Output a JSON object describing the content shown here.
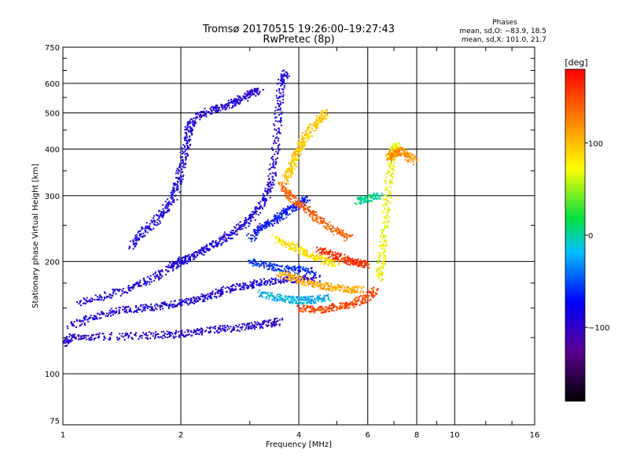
{
  "chart_data": {
    "type": "scatter",
    "title": "Tromsø 20170515 19:26:00–19:27:43",
    "subtitle": "RwPretec (8p)",
    "xlabel": "Frequency [MHz]",
    "ylabel": "Stationary phase Virtual Height [km]",
    "x_scale": "log",
    "y_scale": "log",
    "xlim": [
      1,
      16
    ],
    "ylim": [
      73,
      750
    ],
    "x_ticks": [
      1,
      2,
      4,
      6,
      8,
      10,
      16
    ],
    "x_tick_labels": [
      "1",
      "2",
      "4",
      "6",
      "8",
      "10",
      "16"
    ],
    "y_ticks": [
      75,
      100,
      200,
      300,
      400,
      500,
      600,
      750
    ],
    "y_tick_labels": [
      "75",
      "100",
      "200",
      "300",
      "400",
      "500",
      "600",
      "750"
    ],
    "grid": true,
    "phase_stats": {
      "title": "Phases",
      "line1": "mean, sd,O: −83.9, 18.5",
      "line2": "mean, sd,X: 101.0, 21.7"
    },
    "colorbar": {
      "label": "[deg]",
      "range": [
        -180,
        180
      ],
      "ticks": [
        100,
        0,
        -100
      ],
      "tick_labels": [
        "100",
        "0",
        "−100"
      ]
    },
    "traces": [
      {
        "phase": -95,
        "points": [
          [
            1.0,
            120
          ],
          [
            1.05,
            125
          ],
          [
            1.2,
            126
          ],
          [
            1.5,
            126
          ],
          [
            1.8,
            127
          ],
          [
            2.0,
            128
          ],
          [
            2.3,
            130
          ],
          [
            2.6,
            132
          ],
          [
            3.0,
            134
          ],
          [
            3.3,
            136
          ],
          [
            3.6,
            138
          ]
        ]
      },
      {
        "phase": -90,
        "points": [
          [
            1.05,
            135
          ],
          [
            1.2,
            142
          ],
          [
            1.4,
            148
          ],
          [
            1.6,
            150
          ],
          [
            1.8,
            152
          ],
          [
            2.0,
            155
          ],
          [
            2.2,
            158
          ],
          [
            2.4,
            162
          ],
          [
            2.6,
            168
          ],
          [
            2.9,
            172
          ],
          [
            3.2,
            176
          ],
          [
            3.6,
            178
          ],
          [
            4.0,
            180
          ],
          [
            4.5,
            180
          ]
        ]
      },
      {
        "phase": -88,
        "points": [
          [
            1.1,
            155
          ],
          [
            1.3,
            162
          ],
          [
            1.5,
            170
          ],
          [
            1.7,
            180
          ],
          [
            1.9,
            195
          ],
          [
            2.0,
            200
          ],
          [
            2.1,
            205
          ],
          [
            2.3,
            215
          ],
          [
            2.5,
            225
          ],
          [
            2.7,
            238
          ],
          [
            2.9,
            252
          ],
          [
            3.1,
            268
          ],
          [
            3.3,
            295
          ],
          [
            3.4,
            330
          ],
          [
            3.5,
            400
          ],
          [
            3.55,
            500
          ],
          [
            3.6,
            600
          ],
          [
            3.7,
            640
          ]
        ]
      },
      {
        "phase": -85,
        "points": [
          [
            1.5,
            220
          ],
          [
            1.6,
            240
          ],
          [
            1.75,
            260
          ],
          [
            1.85,
            280
          ],
          [
            1.95,
            310
          ],
          [
            2.0,
            350
          ],
          [
            2.05,
            400
          ],
          [
            2.1,
            450
          ],
          [
            2.15,
            480
          ]
        ]
      },
      {
        "phase": -92,
        "points": [
          [
            2.2,
            490
          ],
          [
            2.4,
            510
          ],
          [
            2.6,
            520
          ],
          [
            2.8,
            540
          ],
          [
            3.0,
            560
          ],
          [
            3.2,
            575
          ]
        ]
      },
      {
        "phase": -70,
        "points": [
          [
            3.0,
            230
          ],
          [
            3.2,
            245
          ],
          [
            3.4,
            255
          ],
          [
            3.6,
            265
          ],
          [
            3.8,
            275
          ],
          [
            4.0,
            285
          ],
          [
            4.2,
            295
          ]
        ]
      },
      {
        "phase": -60,
        "points": [
          [
            3.0,
            200
          ],
          [
            3.3,
            195
          ],
          [
            3.6,
            192
          ],
          [
            4.0,
            190
          ],
          [
            4.4,
            188
          ]
        ]
      },
      {
        "phase": -20,
        "points": [
          [
            3.2,
            165
          ],
          [
            3.5,
            160
          ],
          [
            3.8,
            158
          ],
          [
            4.1,
            157
          ],
          [
            4.4,
            158
          ],
          [
            4.8,
            160
          ]
        ]
      },
      {
        "phase": 95,
        "points": [
          [
            3.7,
            330
          ],
          [
            3.8,
            350
          ],
          [
            3.9,
            380
          ],
          [
            4.0,
            400
          ],
          [
            4.1,
            420
          ],
          [
            4.3,
            450
          ],
          [
            4.5,
            480
          ],
          [
            4.7,
            500
          ]
        ]
      },
      {
        "phase": 140,
        "points": [
          [
            3.6,
            320
          ],
          [
            3.8,
            300
          ],
          [
            4.0,
            285
          ],
          [
            4.3,
            270
          ],
          [
            4.6,
            255
          ],
          [
            5.0,
            240
          ],
          [
            5.4,
            230
          ]
        ]
      },
      {
        "phase": 85,
        "points": [
          [
            3.5,
            230
          ],
          [
            3.8,
            220
          ],
          [
            4.1,
            212
          ],
          [
            4.4,
            205
          ],
          [
            4.7,
            200
          ],
          [
            5.0,
            198
          ]
        ]
      },
      {
        "phase": 110,
        "points": [
          [
            3.6,
            185
          ],
          [
            3.9,
            180
          ],
          [
            4.2,
            176
          ],
          [
            4.6,
            172
          ],
          [
            5.0,
            170
          ],
          [
            5.4,
            168
          ],
          [
            5.8,
            168
          ]
        ]
      },
      {
        "phase": 150,
        "points": [
          [
            4.0,
            150
          ],
          [
            4.4,
            148
          ],
          [
            4.8,
            150
          ],
          [
            5.2,
            152
          ],
          [
            5.6,
            155
          ],
          [
            6.0,
            160
          ],
          [
            6.3,
            168
          ]
        ]
      },
      {
        "phase": 160,
        "points": [
          [
            4.5,
            215
          ],
          [
            4.8,
            210
          ],
          [
            5.1,
            205
          ],
          [
            5.4,
            200
          ],
          [
            5.7,
            198
          ],
          [
            6.0,
            195
          ]
        ]
      },
      {
        "phase": 75,
        "points": [
          [
            6.4,
            180
          ],
          [
            6.5,
            200
          ],
          [
            6.6,
            230
          ],
          [
            6.7,
            280
          ],
          [
            6.8,
            330
          ],
          [
            6.9,
            380
          ],
          [
            7.0,
            400
          ],
          [
            7.2,
            410
          ]
        ]
      },
      {
        "phase": 120,
        "points": [
          [
            6.8,
            380
          ],
          [
            7.0,
            390
          ],
          [
            7.3,
            395
          ],
          [
            7.6,
            385
          ],
          [
            7.9,
            370
          ]
        ]
      },
      {
        "phase": 5,
        "points": [
          [
            5.6,
            290
          ],
          [
            6.0,
            295
          ],
          [
            6.5,
            300
          ]
        ]
      }
    ]
  }
}
